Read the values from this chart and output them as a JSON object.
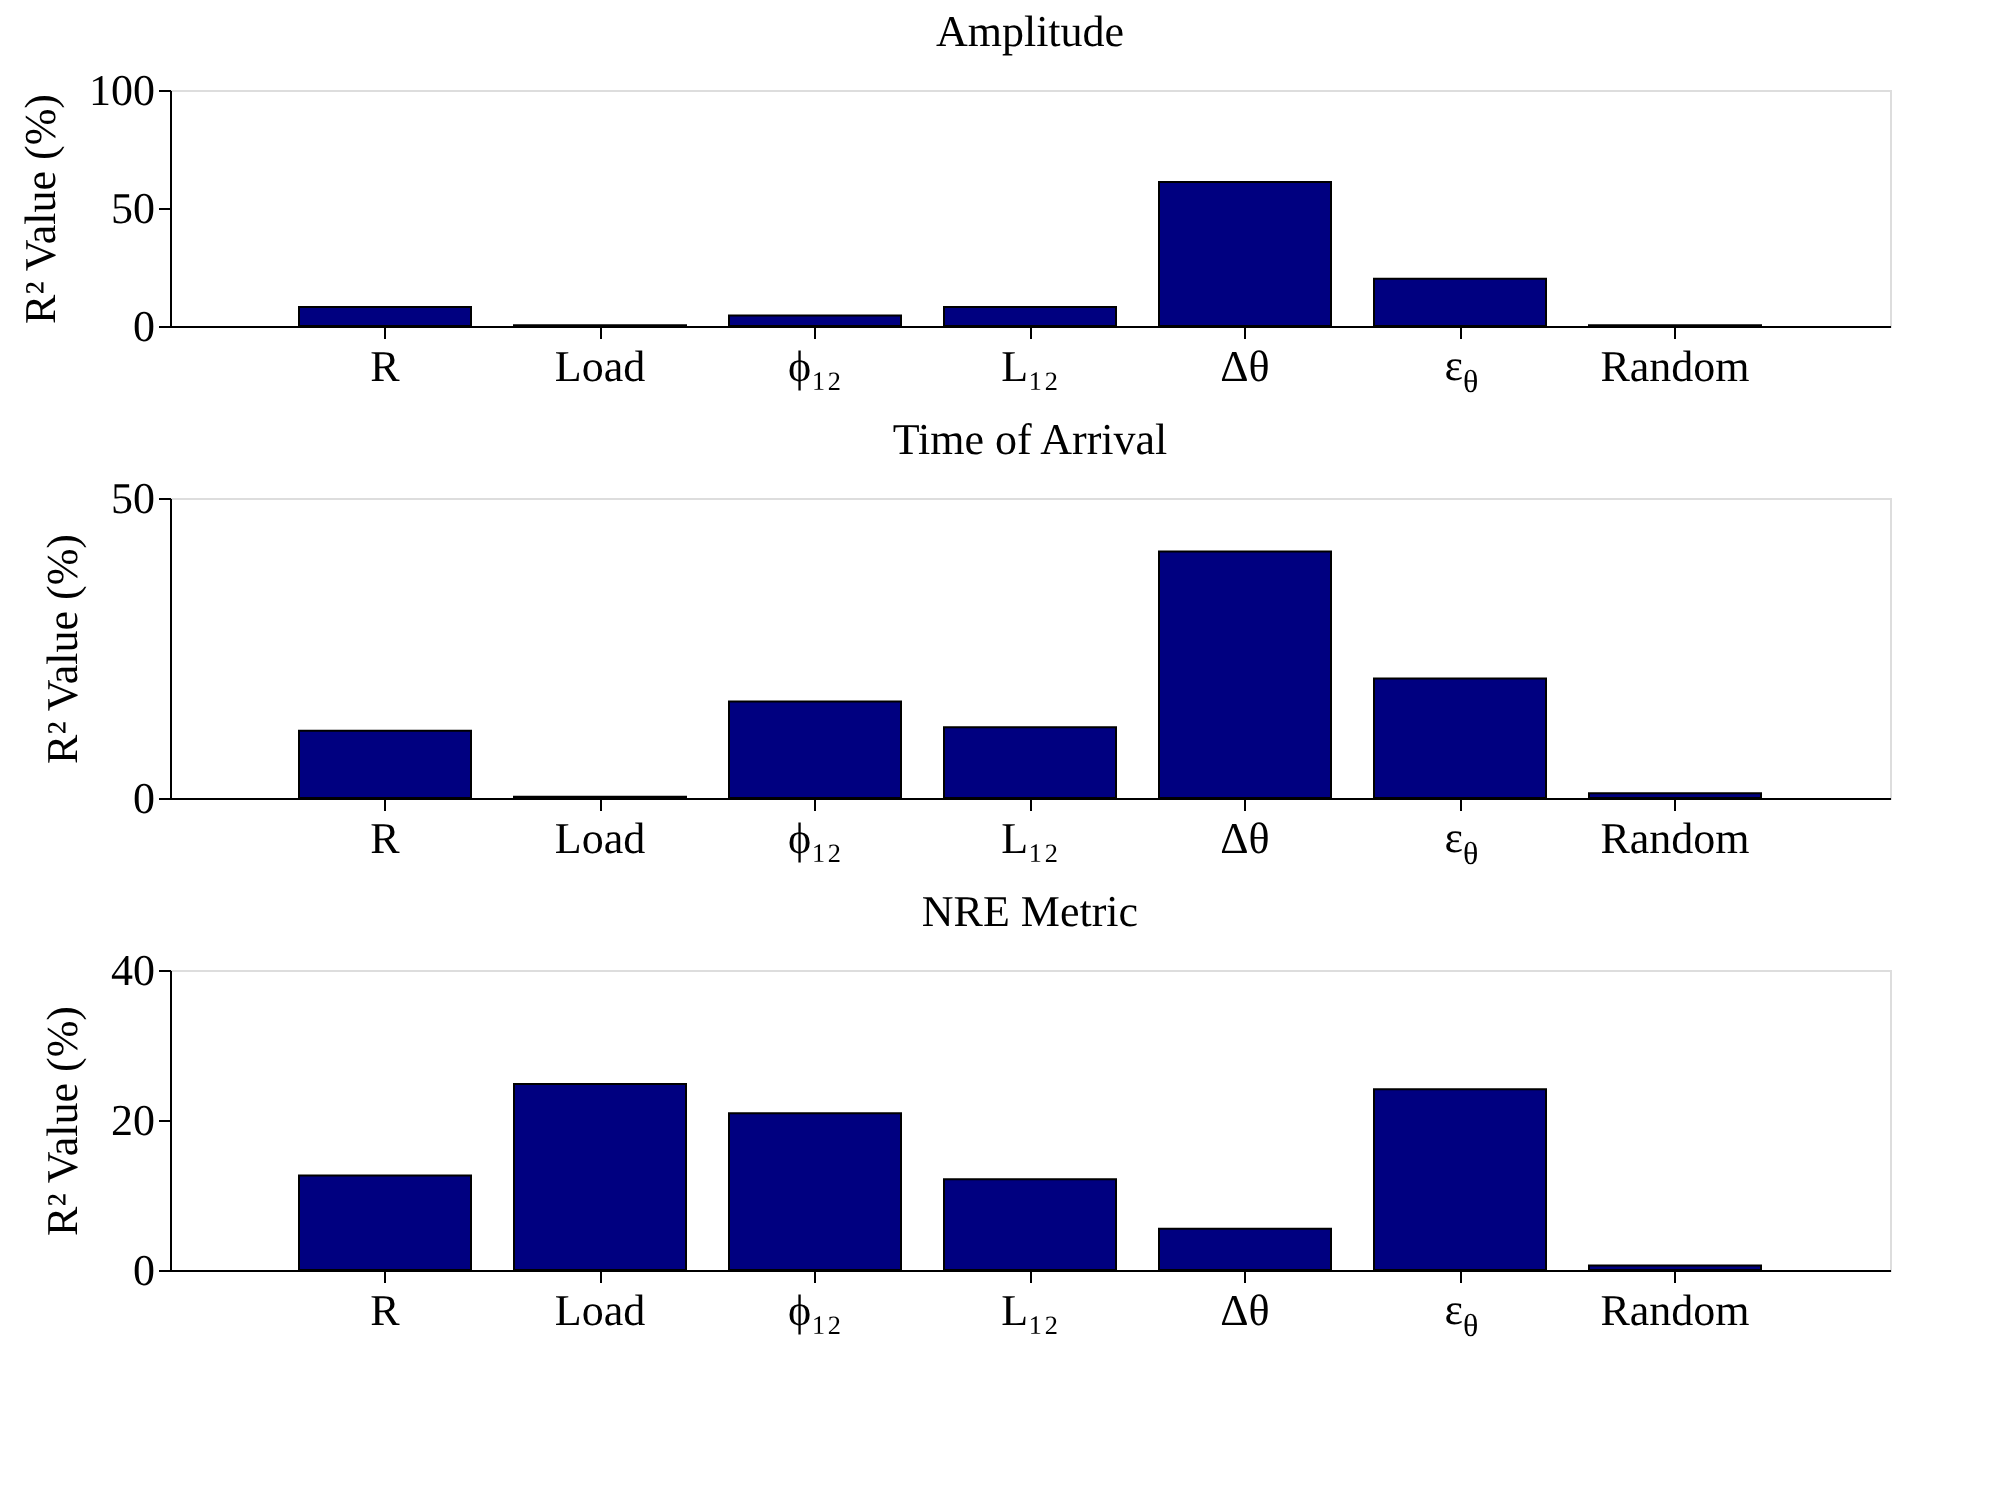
{
  "chart_data": [
    {
      "type": "bar",
      "title": "Amplitude",
      "ylabel": "R² Value (%)",
      "categories": [
        "R",
        "Load",
        "ϕ₁₂",
        "L₁₂",
        "Δθ",
        "ε$_{θ}$",
        "Random"
      ],
      "values": [
        8,
        0.3,
        4.5,
        8,
        61,
        20,
        0.3
      ],
      "color": "#000080",
      "ylim": [
        0,
        100
      ],
      "yticks": [
        0,
        50,
        100
      ],
      "grid": false
    },
    {
      "type": "bar",
      "title": "Time of Arrival",
      "ylabel": "R² Value (%)",
      "categories": [
        "R",
        "Load",
        "ϕ₁₂",
        "L₁₂",
        "Δθ",
        "ε$_{θ}$",
        "Random"
      ],
      "values": [
        11.2,
        0.2,
        16.1,
        11.8,
        41.1,
        19.9,
        0.8
      ],
      "color": "#000080",
      "ylim": [
        0,
        50
      ],
      "yticks": [
        0,
        50
      ],
      "grid": false
    },
    {
      "type": "bar",
      "title": "NRE Metric",
      "ylabel": "R² Value (%)",
      "categories": [
        "R",
        "Load",
        "ϕ₁₂",
        "L₁₂",
        "Δθ",
        "ε$_{θ}$",
        "Random"
      ],
      "values": [
        12.6,
        24.8,
        20.9,
        12.1,
        5.5,
        24.1,
        0.6
      ],
      "color": "#000080",
      "ylim": [
        0,
        40
      ],
      "yticks": [
        0,
        20,
        40
      ],
      "grid": false
    }
  ]
}
